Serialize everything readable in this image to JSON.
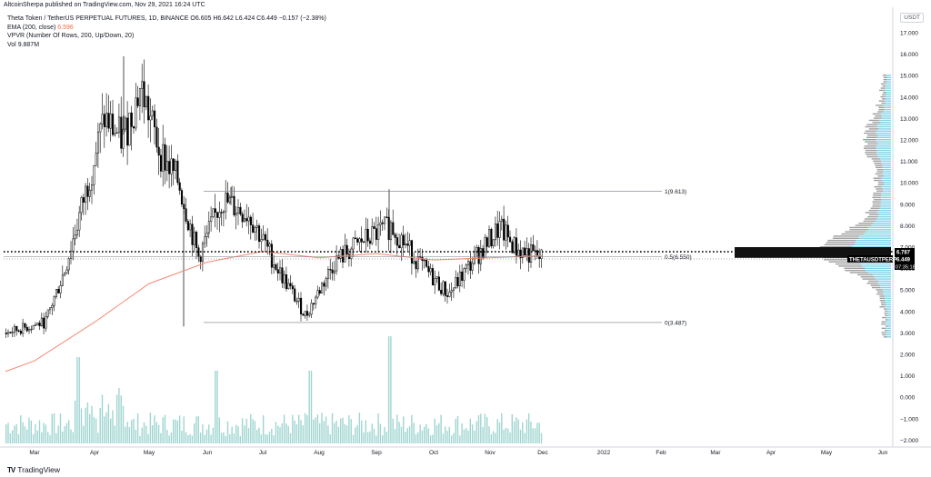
{
  "header": {
    "published": "AltcoinSherpa published on TradingView.com, Nov 29, 2021 16:24 UTC",
    "symbol_line": "Theta Token / TetherUS PERPETUAL FUTURES, 1D, BINANCE",
    "ohlc": "O6.605 H6.642 L6.424 C6.449 −0.157 (−2.38%)",
    "ema_label": "EMA (200, close)",
    "ema_value": "6.596",
    "vpvr_label": "VPVR (Number Of Rows, 200, Up/Down, 20)",
    "vol_label": "Vol",
    "vol_value": "9.887M",
    "currency": "USDT"
  },
  "footer": {
    "brand": "TradingView"
  },
  "colors": {
    "up": "#ffffff",
    "down": "#000000",
    "ema": "#f28b73",
    "volume": "#9fd5d1",
    "vpvr_up": "#7fd3ea",
    "vpvr_down": "#9e9e9e",
    "fib": "#787b86"
  },
  "chart_data": {
    "type": "candlestick",
    "y_axis": {
      "ticks": [
        "17.000",
        "16.000",
        "15.000",
        "14.000",
        "13.000",
        "12.000",
        "11.000",
        "10.000",
        "9.000",
        "8.000",
        "7.000",
        "6.000",
        "5.000",
        "4.000",
        "3.000",
        "2.000",
        "1.000",
        "0.000",
        "−1.000",
        "−2.000"
      ],
      "range": [
        -2.0,
        17.5
      ]
    },
    "x_axis": {
      "ticks": [
        "Mar",
        "Apr",
        "May",
        "Jun",
        "Jul",
        "Aug",
        "Sep",
        "Oct",
        "Nov",
        "Dec",
        "2022",
        "Feb",
        "Mar",
        "Apr",
        "May",
        "Jun"
      ]
    },
    "price_series": [
      {
        "month": "Feb",
        "close": 3.0
      },
      {
        "month": "Mar",
        "close": 3.5
      },
      {
        "month": "Mar",
        "close": 6.0
      },
      {
        "month": "Mar",
        "close": 9.5
      },
      {
        "month": "Apr",
        "close": 13.0
      },
      {
        "month": "Apr",
        "close": 12.0
      },
      {
        "month": "Apr",
        "close": 14.5
      },
      {
        "month": "May",
        "close": 11.5
      },
      {
        "month": "May",
        "close": 10.0
      },
      {
        "month": "May",
        "close": 6.5
      },
      {
        "month": "Jun",
        "close": 9.2
      },
      {
        "month": "Jun",
        "close": 8.5
      },
      {
        "month": "Jul",
        "close": 6.0
      },
      {
        "month": "Jul",
        "close": 3.8
      },
      {
        "month": "Aug",
        "close": 6.3
      },
      {
        "month": "Aug",
        "close": 7.3
      },
      {
        "month": "Sep",
        "close": 8.0
      },
      {
        "month": "Sep",
        "close": 6.2
      },
      {
        "month": "Oct",
        "close": 4.8
      },
      {
        "month": "Oct",
        "close": 6.6
      },
      {
        "month": "Nov",
        "close": 7.9
      },
      {
        "month": "Nov",
        "close": 6.9
      },
      {
        "month": "Nov",
        "close": 6.449
      }
    ],
    "ema_200": [
      {
        "month": "Feb",
        "value": 1.2
      },
      {
        "month": "Mar",
        "value": 1.7
      },
      {
        "month": "Apr",
        "value": 3.5
      },
      {
        "month": "May",
        "value": 5.3
      },
      {
        "month": "Jun",
        "value": 6.3
      },
      {
        "month": "Jul",
        "value": 6.8
      },
      {
        "month": "Aug",
        "value": 6.5
      },
      {
        "month": "Sep",
        "value": 6.7
      },
      {
        "month": "Oct",
        "value": 6.4
      },
      {
        "month": "Nov",
        "value": 6.6
      }
    ],
    "fib_levels": [
      {
        "label": "1(9.613)",
        "value": 9.613
      },
      {
        "label": "0.5(6.550)",
        "value": 6.55
      },
      {
        "label": "0(3.487)",
        "value": 3.487
      }
    ],
    "poc_line": 6.787,
    "price_labels": {
      "poc": "6.787",
      "last": "6.449",
      "symbol": "THETAUSDTPERP",
      "countdown": "07:35:18"
    }
  }
}
